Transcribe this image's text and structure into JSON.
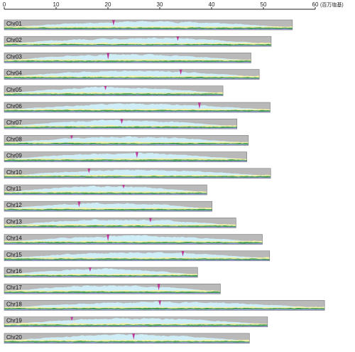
{
  "chart_data": {
    "type": "area",
    "x_axis": {
      "min": 0,
      "max": 60,
      "ticks": [
        0,
        10,
        20,
        30,
        40,
        50,
        60
      ],
      "unit": "(百万塩基)"
    },
    "colors": {
      "gray": "#b9b9b9",
      "lightblue": "#cfeef7",
      "yellow": "#f4f2a8",
      "green": "#3f9a52",
      "purple": "#9c9ce0",
      "magenta": "#c0399a",
      "axis": "#222222",
      "bar_outline": "#777777"
    },
    "chromosomes": [
      {
        "name": "Chr01",
        "length": 55.6
      },
      {
        "name": "Chr02",
        "length": 51.5
      },
      {
        "name": "Chr03",
        "length": 47.6
      },
      {
        "name": "Chr04",
        "length": 49.2
      },
      {
        "name": "Chr05",
        "length": 42.2
      },
      {
        "name": "Chr06",
        "length": 51.3
      },
      {
        "name": "Chr07",
        "length": 44.9
      },
      {
        "name": "Chr08",
        "length": 47.1
      },
      {
        "name": "Chr09",
        "length": 46.8
      },
      {
        "name": "Chr10",
        "length": 51.4
      },
      {
        "name": "Chr11",
        "length": 39.1
      },
      {
        "name": "Chr12",
        "length": 40.1
      },
      {
        "name": "Chr13",
        "length": 44.7
      },
      {
        "name": "Chr14",
        "length": 49.8
      },
      {
        "name": "Chr15",
        "length": 51.2
      },
      {
        "name": "Chr16",
        "length": 37.3
      },
      {
        "name": "Chr17",
        "length": 41.7
      },
      {
        "name": "Chr18",
        "length": 61.8
      },
      {
        "name": "Chr19",
        "length": 50.8
      },
      {
        "name": "Chr20",
        "length": 47.3
      }
    ]
  }
}
